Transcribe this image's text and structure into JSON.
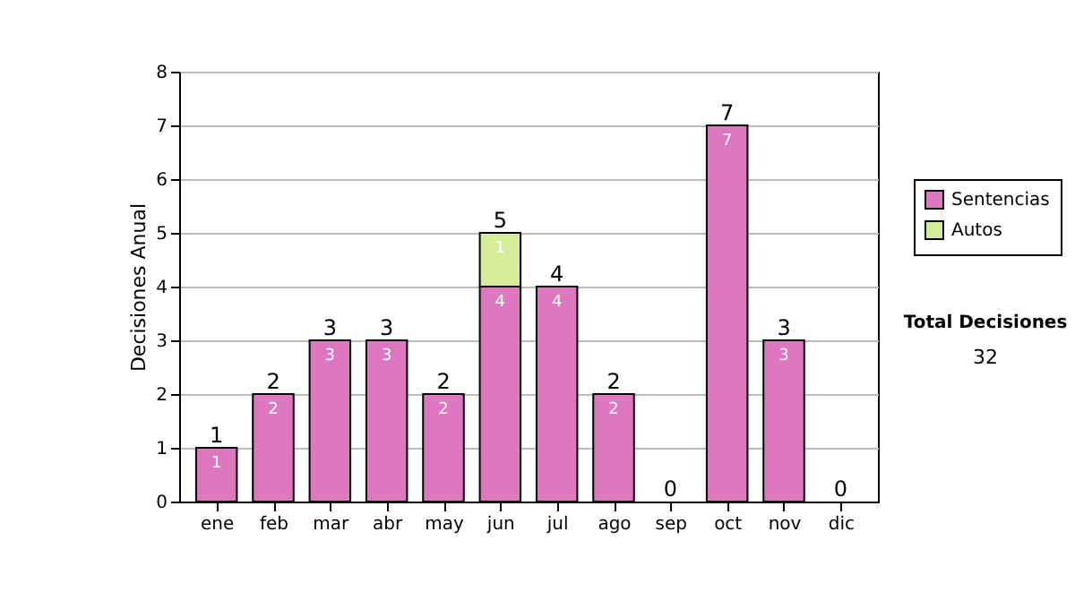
{
  "chart_data": {
    "type": "bar",
    "stacked": true,
    "ylabel": "Decisiones Anual",
    "categories": [
      "ene",
      "feb",
      "mar",
      "abr",
      "may",
      "jun",
      "jul",
      "ago",
      "sep",
      "oct",
      "nov",
      "dic"
    ],
    "series": [
      {
        "name": "Sentencias",
        "color": "#dd77c0",
        "values": [
          1,
          2,
          3,
          3,
          2,
          4,
          4,
          2,
          null,
          7,
          3,
          null
        ]
      },
      {
        "name": "Autos",
        "color": "#d6ec9a",
        "values": [
          null,
          null,
          null,
          null,
          null,
          1,
          null,
          null,
          null,
          null,
          null,
          null
        ]
      }
    ],
    "totals": [
      "1",
      "2",
      "3",
      "3",
      "2",
      "5",
      "4",
      "2",
      "0",
      "7",
      "3",
      "0"
    ],
    "data_labels": true,
    "ylim": [
      0,
      8
    ],
    "yticks": [
      0,
      1,
      2,
      3,
      4,
      5,
      6,
      7,
      8
    ],
    "grid": "y",
    "legend": "right",
    "annotations": [
      "Total Decisiones",
      "32"
    ]
  }
}
